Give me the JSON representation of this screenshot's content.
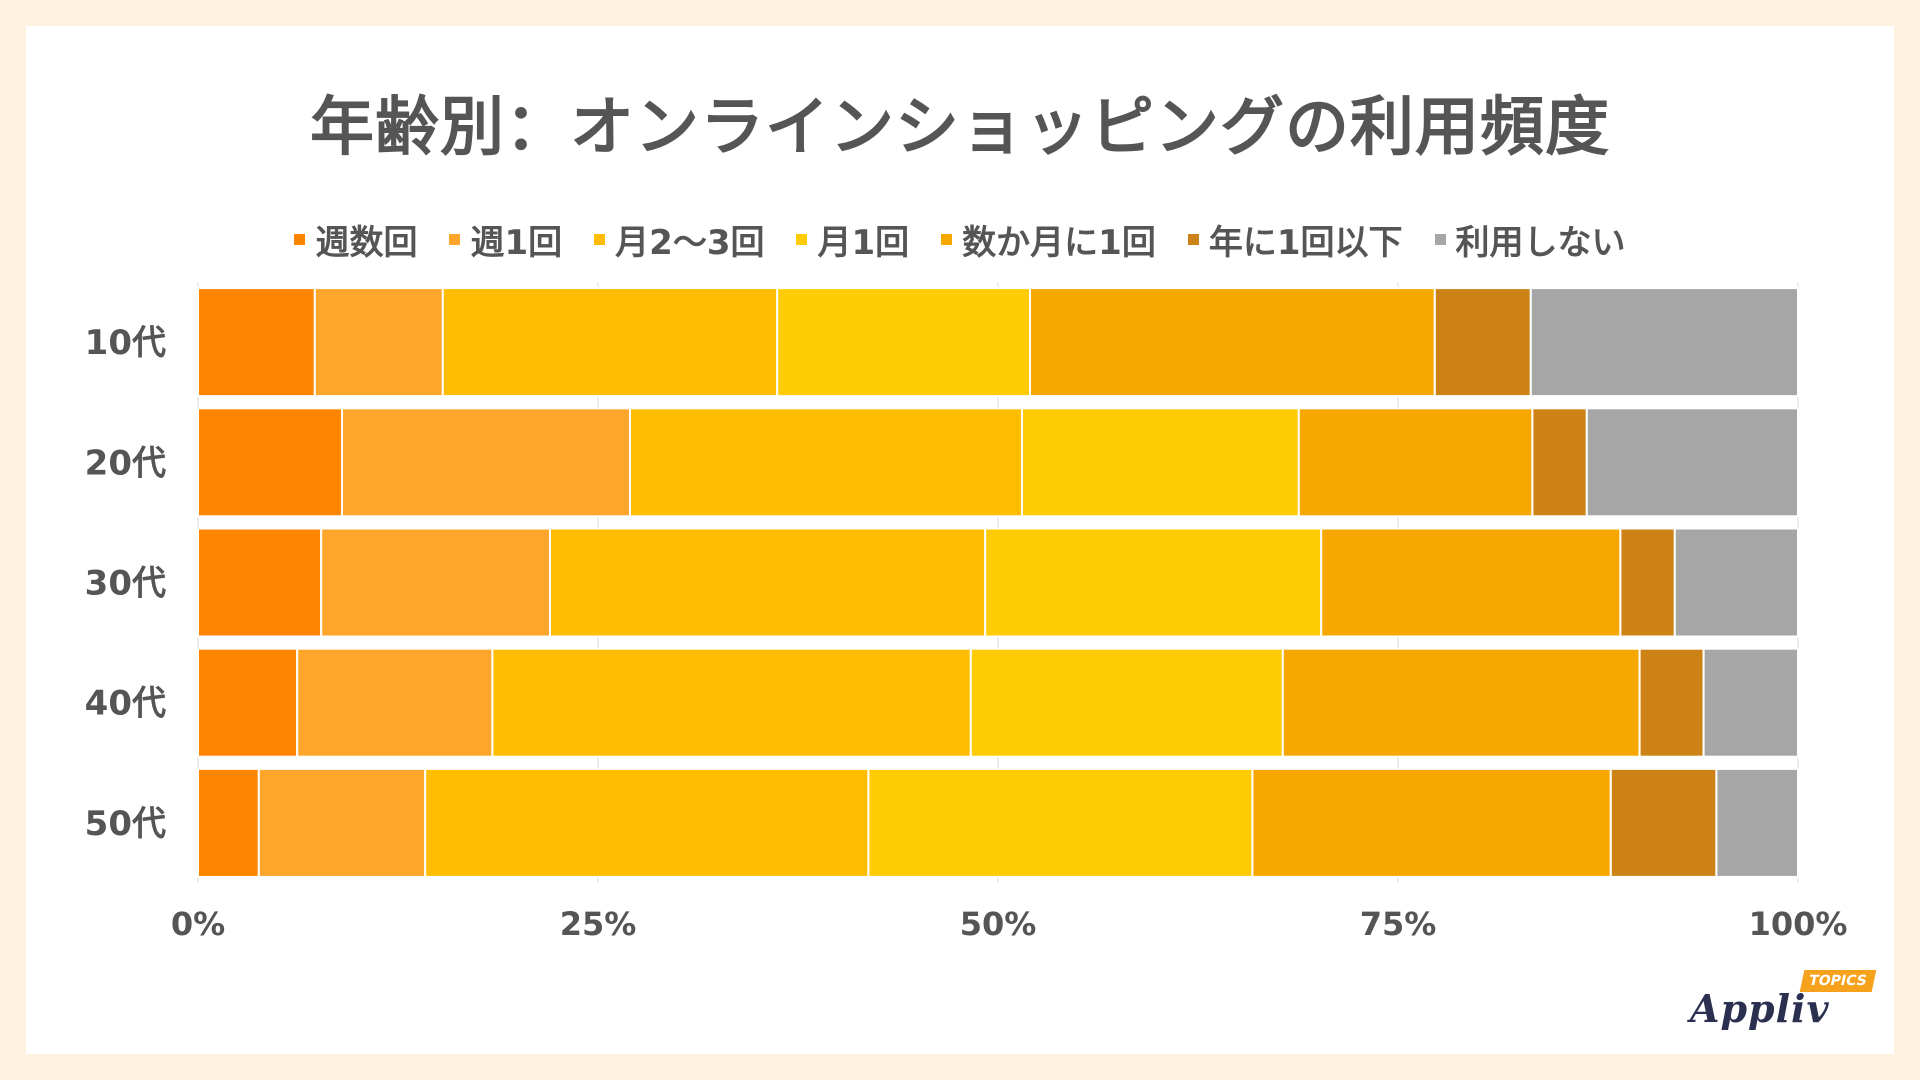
{
  "title": "年齢別：オンラインショッピングの利用頻度",
  "logo": {
    "word": "Appliv",
    "tag": "TOPICS"
  },
  "chart_data": {
    "type": "bar",
    "orientation": "horizontal",
    "stacked": true,
    "percent_stacked": true,
    "title": "年齢別：オンラインショッピングの利用頻度",
    "categories": [
      "10代",
      "20代",
      "30代",
      "40代",
      "50代"
    ],
    "series": [
      {
        "name": "週数回",
        "color": "#FF8400",
        "values": [
          7.3,
          9.0,
          7.7,
          6.2,
          3.8
        ]
      },
      {
        "name": "週1回",
        "color": "#FDA62B",
        "values": [
          8.0,
          18.0,
          14.3,
          12.2,
          10.4
        ]
      },
      {
        "name": "月2〜3回",
        "color": "#FEBD00",
        "values": [
          20.9,
          24.5,
          27.2,
          29.9,
          27.7
        ]
      },
      {
        "name": "月1回",
        "color": "#FFCB05",
        "values": [
          15.8,
          17.3,
          21.0,
          19.5,
          24.0
        ]
      },
      {
        "name": "数か月に1回",
        "color": "#F7A800",
        "values": [
          25.3,
          14.6,
          18.7,
          22.3,
          22.4
        ]
      },
      {
        "name": "年に1回以下",
        "color": "#CD8216",
        "values": [
          6.0,
          3.4,
          3.4,
          4.0,
          6.6
        ]
      },
      {
        "name": "利用しない",
        "color": "#A6A6A6",
        "values": [
          16.7,
          13.2,
          7.7,
          5.9,
          5.1
        ]
      }
    ],
    "xlim": [
      0,
      100
    ],
    "x_ticks": [
      "0%",
      "25%",
      "50%",
      "75%",
      "100%"
    ],
    "grid": true,
    "legend_position": "top"
  }
}
